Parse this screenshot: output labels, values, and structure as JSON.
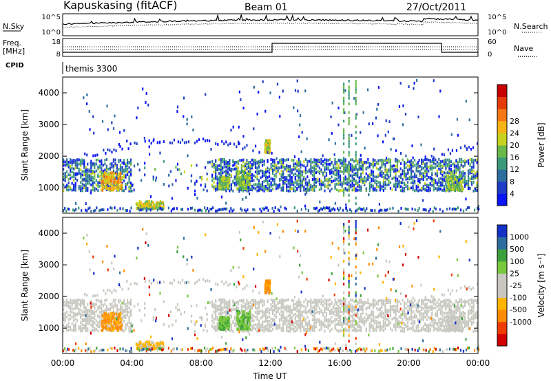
{
  "header": {
    "station": "Kapuskasing (fitACF)",
    "beam": "Beam 01",
    "date": "27/Oct/2011",
    "cpid_label": "CPID",
    "cpid_value": "themis 3300"
  },
  "noise_panel": {
    "left_label": "N.Sky",
    "left_ticks": [
      "10^5",
      "10^0"
    ],
    "right_label": "N.Search",
    "right_ticks": [
      "10^5",
      "10^0"
    ]
  },
  "freq_panel": {
    "left_label_1": "Freq.",
    "left_label_2": "[MHz]",
    "left_ticks": [
      "18",
      "8"
    ],
    "right_label": "Nave",
    "right_ticks": [
      "60",
      "0"
    ]
  },
  "colors": {
    "power_scale": [
      "#0a14f5",
      "#1e3cc8",
      "#2e6e9e",
      "#3a9a7a",
      "#6ab84a",
      "#c8d21e",
      "#f5b414",
      "#f57814",
      "#e63c0a",
      "#c80000"
    ],
    "velocity_scale": [
      "#d20000",
      "#f03c00",
      "#ff8c00",
      "#ffb400",
      "#c8c8c0",
      "#c8c8c0",
      "#78c83c",
      "#3ca03c",
      "#2e6e9e",
      "#1432c8"
    ]
  },
  "chart_data": [
    {
      "type": "heatmap",
      "name": "power",
      "xlabel": "",
      "ylabel": "Slant Range [km]",
      "y_ticks": [
        "1000",
        "2000",
        "3000",
        "4000"
      ],
      "ylim": [
        200,
        4500
      ],
      "x_range": [
        "00:00",
        "24:00"
      ],
      "colorbar_label": "Power [dB]",
      "colorbar_ticks": [
        "4",
        "8",
        "12",
        "16",
        "20",
        "24",
        "28"
      ]
    },
    {
      "type": "heatmap",
      "name": "velocity",
      "xlabel": "Time UT",
      "ylabel": "Slant Range [km]",
      "x_ticks": [
        "00:00",
        "04:00",
        "08:00",
        "12:00",
        "16:00",
        "20:00",
        "00:00"
      ],
      "y_ticks": [
        "1000",
        "2000",
        "3000",
        "4000"
      ],
      "ylim": [
        200,
        4500
      ],
      "colorbar_label": "Velocity [m s⁻¹]",
      "colorbar_ticks": [
        "1000",
        "500",
        "100",
        "25",
        "-25",
        "-100",
        "-500",
        "-1000"
      ]
    }
  ]
}
